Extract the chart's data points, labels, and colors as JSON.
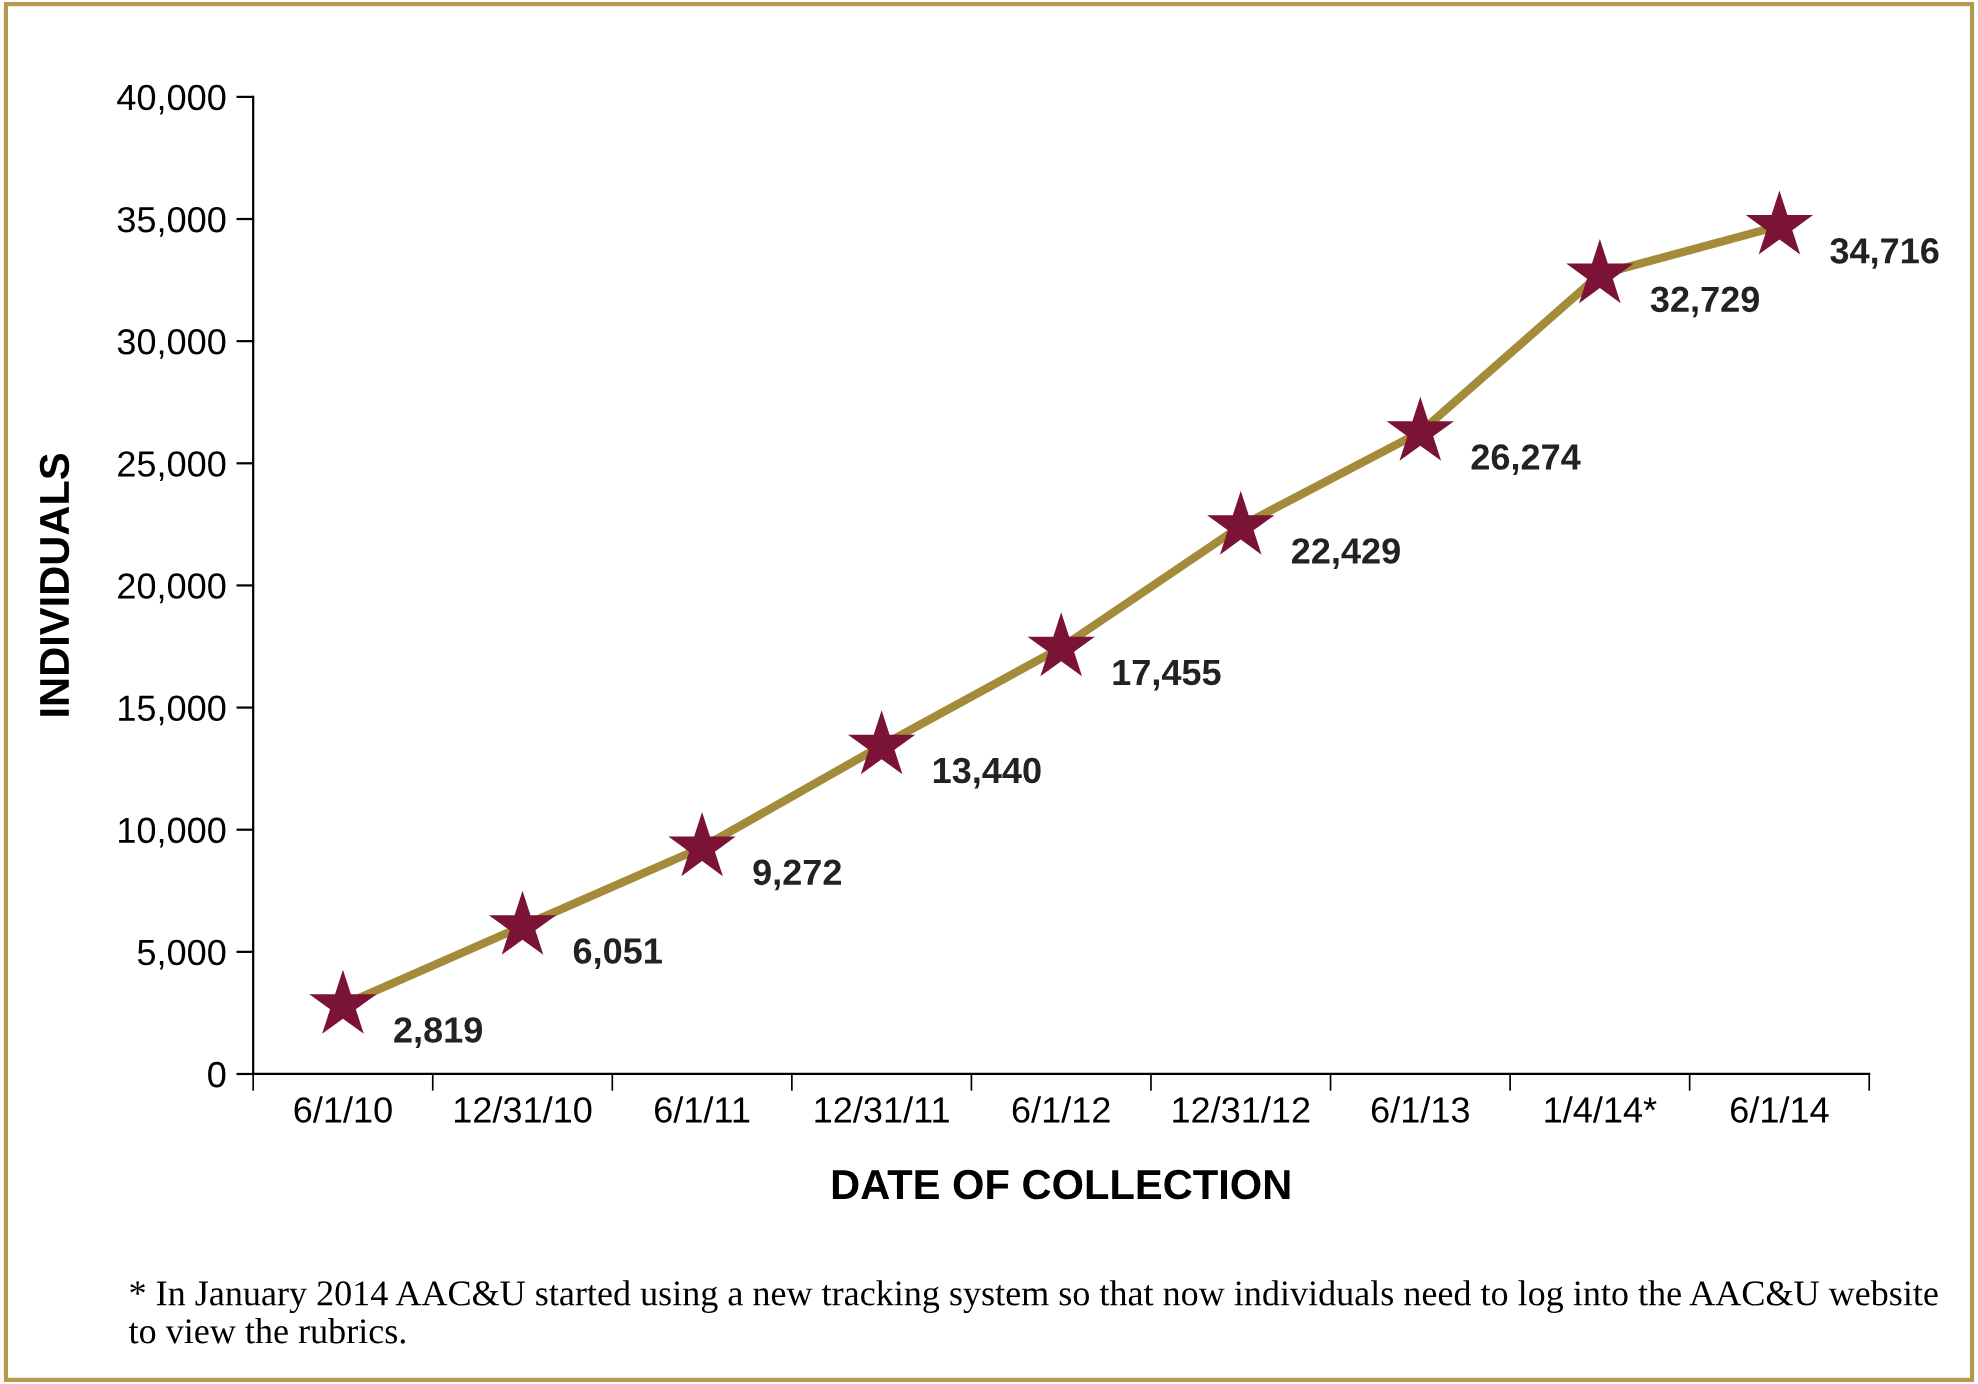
{
  "chart_data": {
    "type": "line",
    "xlabel": "DATE OF COLLECTION",
    "ylabel": "INDIVIDUALS",
    "categories": [
      "6/1/10",
      "12/31/10",
      "6/1/11",
      "12/31/11",
      "6/1/12",
      "12/31/12",
      "6/1/13",
      "1/4/14*",
      "6/1/14"
    ],
    "series": [
      {
        "color": "#a38b3a",
        "colors": [
          "#7a1335",
          "#7a1335",
          "#7a1335",
          "#7a1335",
          "#7a1335",
          "#7a1335",
          "#7a1335",
          "#7a1335",
          "#7a1335"
        ],
        "values": [
          2819,
          6051,
          9272,
          13440,
          17455,
          22429,
          26274,
          32729,
          34716
        ],
        "value_labels": [
          "2,819",
          "6,051",
          "9,272",
          "13,440",
          "17,455",
          "22,429",
          "26,274",
          "32,729",
          "34,716"
        ]
      }
    ],
    "marker": "star",
    "line_style": "solid",
    "grid": false,
    "ylim": [
      0,
      40000
    ],
    "yticks": [
      0,
      {
        "value": 5000,
        "label": "5,000"
      },
      {
        "value": 10000,
        "label": "10,000"
      },
      {
        "value": 15000,
        "label": "15,000"
      },
      {
        "value": 20000,
        "label": "20,000"
      },
      {
        "value": 25000,
        "label": "25,000"
      },
      {
        "value": 30000,
        "label": "30,000"
      },
      {
        "value": 35000,
        "label": "35,000"
      },
      {
        "value": 40000,
        "label": "40,000"
      }
    ],
    "annotations": [
      "* In January 2014 AAC&U started using a new tracking system so that now individuals need to log into the AAC&U website to view the rubrics."
    ]
  }
}
